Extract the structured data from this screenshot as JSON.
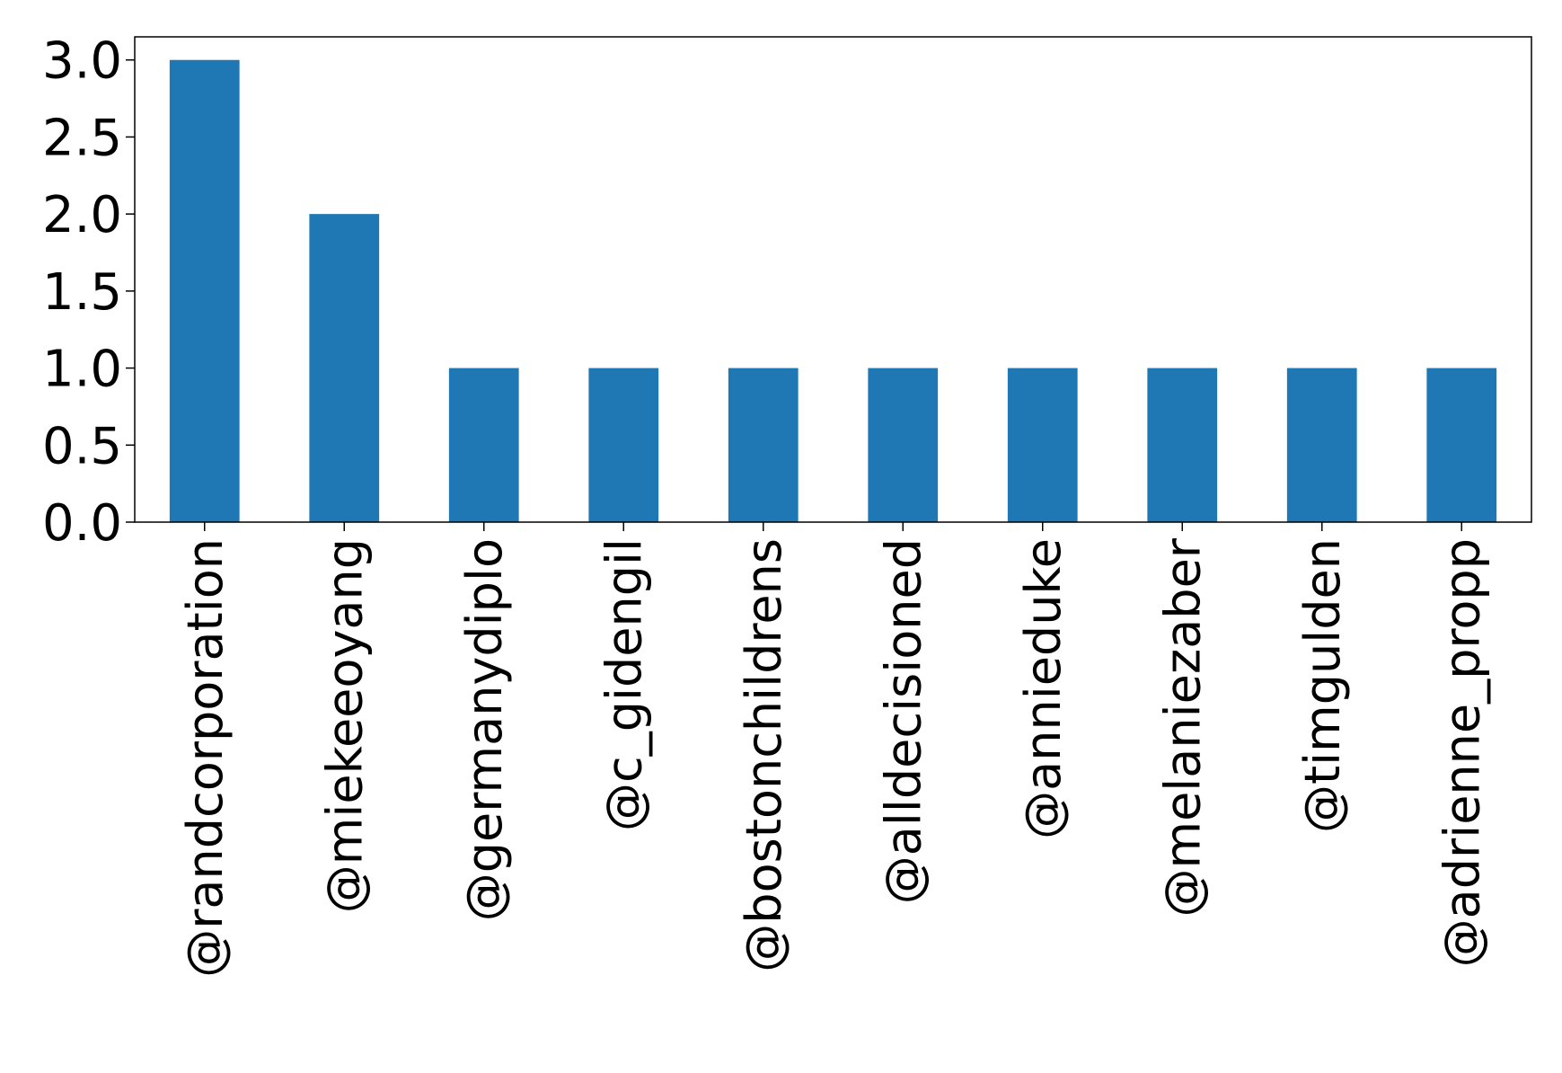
{
  "chart_data": {
    "type": "bar",
    "categories": [
      "@randcorporation",
      "@miekeeoyang",
      "@germanydiplo",
      "@c_gidengil",
      "@bostonchildrens",
      "@alldecisioned",
      "@annieduke",
      "@melaniezaber",
      "@timgulden",
      "@adrienne_propp"
    ],
    "values": [
      3,
      2,
      1,
      1,
      1,
      1,
      1,
      1,
      1,
      1
    ],
    "ylim": [
      0,
      3.15
    ],
    "yticks": [
      "0.0",
      "0.5",
      "1.0",
      "1.5",
      "2.0",
      "2.5",
      "3.0"
    ],
    "bar_color": "#1f77b4",
    "grid": false,
    "legend": "none"
  }
}
